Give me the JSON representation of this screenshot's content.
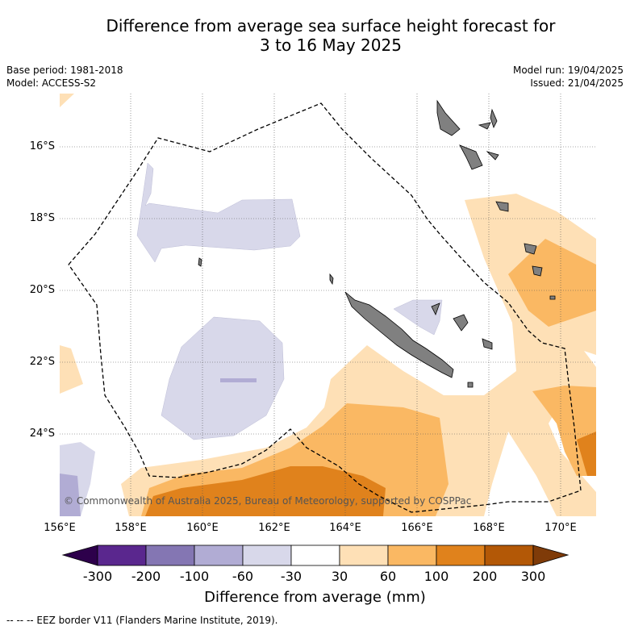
{
  "header": {
    "title_line1": "Difference from average sea surface height forecast for",
    "title_line2": "3 to 16 May 2025",
    "base_period": "Base period: 1981-2018",
    "model": "Model: ACCESS-S2",
    "model_run": "Model run: 19/04/2025",
    "issued": "Issued: 21/04/2025"
  },
  "map": {
    "lat_labels": [
      "16°S",
      "18°S",
      "20°S",
      "22°S",
      "24°S"
    ],
    "lon_labels": [
      "156°E",
      "158°E",
      "160°E",
      "162°E",
      "164°E",
      "166°E",
      "168°E",
      "170°E"
    ],
    "copyright": "© Commonwealth of Australia 2025, Bureau of Meteorology, supported by COSPPac",
    "colors": {
      "land": "#808080",
      "neg_60_30": "#d8d8ea",
      "neg_100_60": "#b1acd4",
      "neg_200_100": "#8476b3",
      "neg_300_200": "#5a278e",
      "neg_min": "#2d004b",
      "pos_30_60": "#fee0b6",
      "pos_60_100": "#fab863",
      "pos_100_200": "#e0821c",
      "pos_200_300": "#b35806",
      "pos_max": "#7f3b08"
    }
  },
  "colorbar": {
    "tick_labels": [
      "-300",
      "-200",
      "-100",
      "-60",
      "-30",
      "30",
      "60",
      "100",
      "200",
      "300"
    ],
    "title": "Difference from average (mm)"
  },
  "footnote": "-- -- -- EEZ border V11 (Flanders Marine Institute, 2019)."
}
